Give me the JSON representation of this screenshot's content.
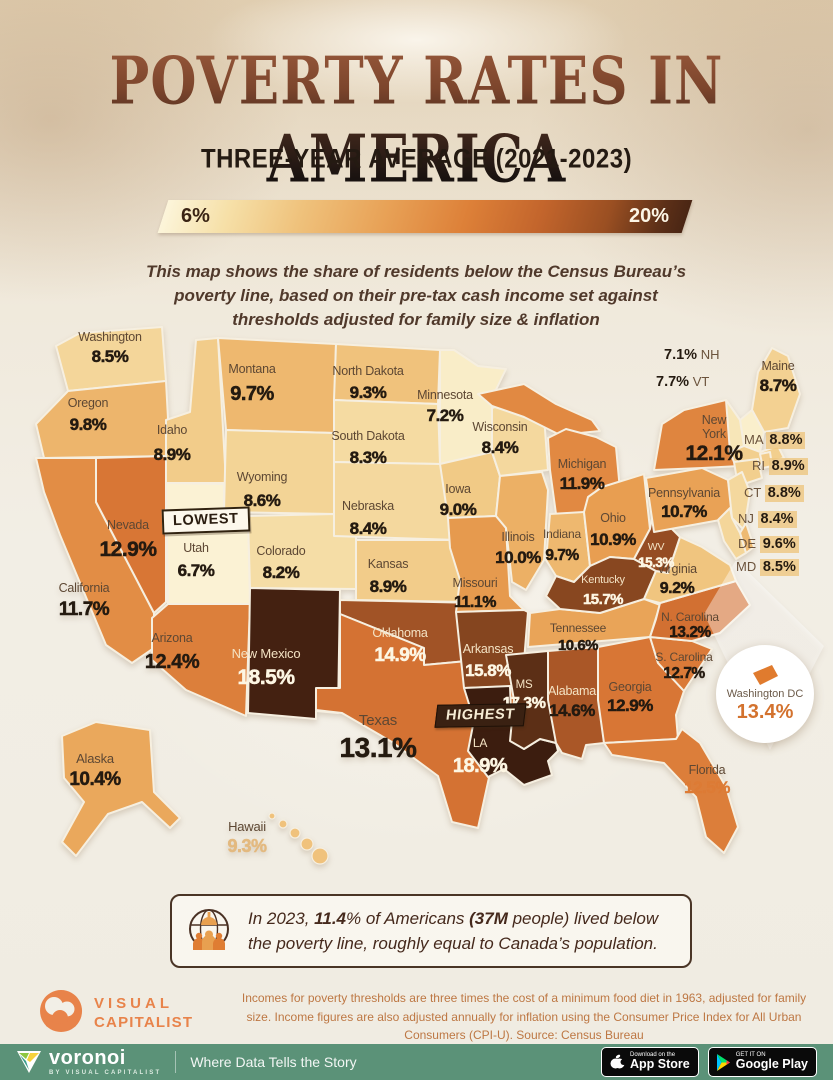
{
  "header": {
    "title": "POVERTY RATES IN AMERICA",
    "subtitle": "THREE-YEAR AVERAGE (2021-2023)"
  },
  "legend": {
    "min_label": "6%",
    "max_label": "20%"
  },
  "description": "This map shows the share of residents below the Census Bureau’s poverty line, based on their pre-tax cash income set against thresholds adjusted for family size & inflation",
  "annotations": {
    "lowest": "LOWEST",
    "highest": "HIGHEST"
  },
  "chart_data": {
    "type": "heatmap",
    "subtype": "us-choropleth",
    "title": "Poverty Rates in America",
    "subtitle": "Three-Year Average (2021-2023)",
    "unit": "%",
    "scale": {
      "min": 6,
      "max": 20,
      "min_color": "#fcf5da",
      "max_color": "#2f160b"
    },
    "lowest_state": "Utah",
    "highest_state": "Louisiana",
    "states": [
      {
        "id": "WA",
        "name": "Washington",
        "value": 8.5
      },
      {
        "id": "OR",
        "name": "Oregon",
        "value": 9.8
      },
      {
        "id": "CA",
        "name": "California",
        "value": 11.7
      },
      {
        "id": "NV",
        "name": "Nevada",
        "value": 12.9
      },
      {
        "id": "ID",
        "name": "Idaho",
        "value": 8.9
      },
      {
        "id": "MT",
        "name": "Montana",
        "value": 9.7
      },
      {
        "id": "WY",
        "name": "Wyoming",
        "value": 8.6
      },
      {
        "id": "UT",
        "name": "Utah",
        "value": 6.7
      },
      {
        "id": "CO",
        "name": "Colorado",
        "value": 8.2
      },
      {
        "id": "AZ",
        "name": "Arizona",
        "value": 12.4
      },
      {
        "id": "NM",
        "name": "New Mexico",
        "value": 18.5
      },
      {
        "id": "AK",
        "name": "Alaska",
        "value": 10.4
      },
      {
        "id": "HI",
        "name": "Hawaii",
        "value": 9.3
      },
      {
        "id": "ND",
        "name": "North Dakota",
        "value": 9.3
      },
      {
        "id": "SD",
        "name": "South Dakota",
        "value": 8.3
      },
      {
        "id": "NE",
        "name": "Nebraska",
        "value": 8.4
      },
      {
        "id": "KS",
        "name": "Kansas",
        "value": 8.9
      },
      {
        "id": "OK",
        "name": "Oklahoma",
        "value": 14.9
      },
      {
        "id": "TX",
        "name": "Texas",
        "value": 13.1
      },
      {
        "id": "MN",
        "name": "Minnesota",
        "value": 7.2
      },
      {
        "id": "IA",
        "name": "Iowa",
        "value": 9.0
      },
      {
        "id": "MO",
        "name": "Missouri",
        "value": 11.1
      },
      {
        "id": "WI",
        "name": "Wisconsin",
        "value": 8.4
      },
      {
        "id": "IL",
        "name": "Illinois",
        "value": 10.0
      },
      {
        "id": "MI",
        "name": "Michigan",
        "value": 11.9
      },
      {
        "id": "IN",
        "name": "Indiana",
        "value": 9.7
      },
      {
        "id": "OH",
        "name": "Ohio",
        "value": 10.9
      },
      {
        "id": "AR",
        "name": "Arkansas",
        "value": 15.8
      },
      {
        "id": "LA",
        "name": "Louisiana",
        "map_label": "LA",
        "value": 18.9
      },
      {
        "id": "MS",
        "name": "Mississippi",
        "map_label": "MS",
        "value": 17.3
      },
      {
        "id": "AL",
        "name": "Alabama",
        "value": 14.6
      },
      {
        "id": "TN",
        "name": "Tennessee",
        "value": 10.6
      },
      {
        "id": "KY",
        "name": "Kentucky",
        "value": 15.7
      },
      {
        "id": "GA",
        "name": "Georgia",
        "value": 12.9
      },
      {
        "id": "FL",
        "name": "Florida",
        "value": 12.5
      },
      {
        "id": "SC",
        "name": "South Carolina",
        "map_label": "S. Carolina",
        "value": 12.7
      },
      {
        "id": "NC",
        "name": "North Carolina",
        "map_label": "N. Carolina",
        "value": 13.2
      },
      {
        "id": "VA",
        "name": "Virginia",
        "value": 9.2
      },
      {
        "id": "WV",
        "name": "West Virginia",
        "map_label": "WV",
        "value": 15.3
      },
      {
        "id": "PA",
        "name": "Pennsylvania",
        "value": 10.7
      },
      {
        "id": "NY",
        "name": "New York",
        "value": 12.1
      },
      {
        "id": "ME",
        "name": "Maine",
        "value": 8.7
      },
      {
        "id": "NH",
        "name": "New Hampshire",
        "map_label": "NH",
        "value": 7.1
      },
      {
        "id": "VT",
        "name": "Vermont",
        "map_label": "VT",
        "value": 7.7
      },
      {
        "id": "MA",
        "name": "Massachusetts",
        "map_label": "MA",
        "value": 8.8
      },
      {
        "id": "RI",
        "name": "Rhode Island",
        "map_label": "RI",
        "value": 8.9
      },
      {
        "id": "CT",
        "name": "Connecticut",
        "map_label": "CT",
        "value": 8.8
      },
      {
        "id": "NJ",
        "name": "New Jersey",
        "map_label": "NJ",
        "value": 8.4
      },
      {
        "id": "DE",
        "name": "Delaware",
        "map_label": "DE",
        "value": 9.6
      },
      {
        "id": "MD",
        "name": "Maryland",
        "map_label": "MD",
        "value": 8.5
      },
      {
        "id": "DC",
        "name": "Washington DC",
        "value": 13.4
      }
    ]
  },
  "dc": {
    "label": "Washington DC",
    "value_display": "13.4%"
  },
  "callout": {
    "p1": "In 2023, ",
    "b1": "11.4",
    "p2": "% of Americans ",
    "b2": "(37M",
    "p3": " people) lived below the poverty line, roughly equal to Canada’s population."
  },
  "footer": {
    "brand_line1": "VISUAL",
    "brand_line2": "CAPITALIST",
    "source": "Incomes for poverty thresholds are three times the cost of a minimum food diet in 1963, adjusted for family size. Income figures are also adjusted annually for inflation using the Consumer Price Index for All Urban Consumers (CPI-U). Source: Census Bureau"
  },
  "bottom_bar": {
    "brand": "voronoi",
    "brand_sub": "BY VISUAL CAPITALIST",
    "tagline": "Where Data Tells the Story",
    "appstore_top": "Download on the",
    "appstore_bottom": "App Store",
    "gplay_top": "GET IT ON",
    "gplay_bottom": "Google Play"
  }
}
